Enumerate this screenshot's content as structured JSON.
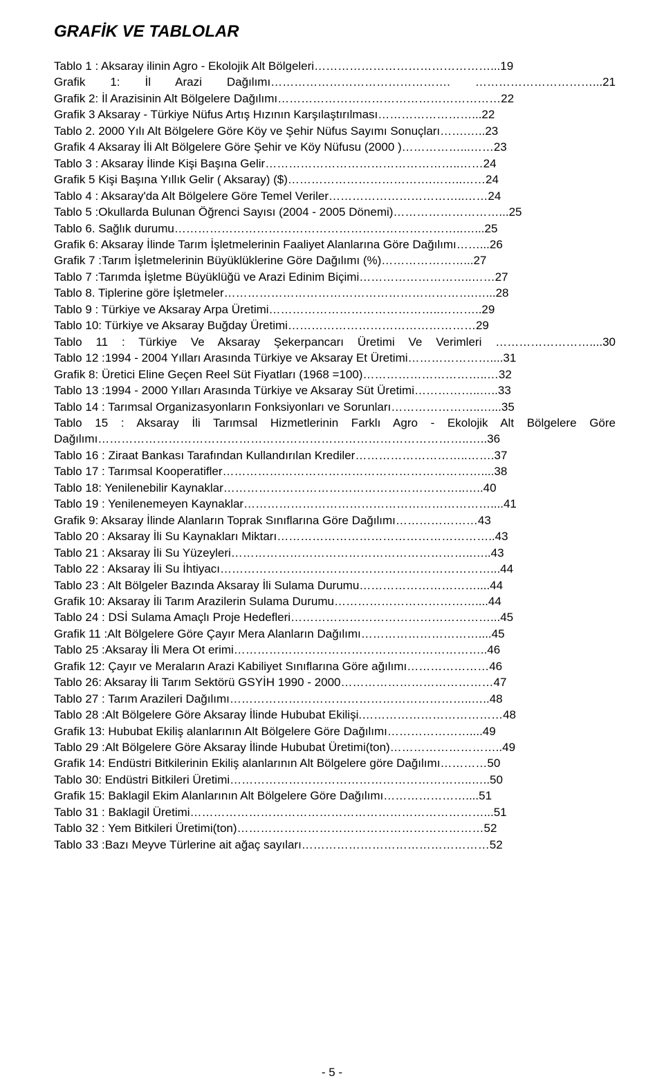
{
  "title": "GRAFİK VE TABLOLAR",
  "entries": [
    {
      "text": "Tablo 1 : Aksaray ilinin Agro - Ekolojik Alt Bölgeleri………………………………………...19",
      "justified": false
    },
    {
      "text": "Grafik 1: İl Arazi Dağılımı………………………………………. …………………………...21",
      "justified": true
    },
    {
      "text": "Grafik 2: İl Arazisinin  Alt  Bölgelere Dağılımı…………………………………………………22",
      "justified": false
    },
    {
      "text": "Grafik 3 Aksaray - Türkiye Nüfus Artış Hızının Karşılaştırılması……………………...22",
      "justified": false
    },
    {
      "text": "Tablo 2.  2000 Yılı Alt Bölgelere Göre Köy ve Şehir  Nüfus Sayımı Sonuçları…….…..23",
      "justified": false
    },
    {
      "text": "Grafik 4 Aksaray İli Alt Bölgelere Göre Şehir ve Köy Nüfusu (2000 )……………...……23",
      "justified": false
    },
    {
      "text": "Tablo 3 : Aksaray İlinde Kişi Başına Gelir…………………………………………..……24",
      "justified": false
    },
    {
      "text": " Grafik 5 Kişi Başına Yıllık Gelir ( Aksaray) ($)……………………………….……..……24",
      "justified": false
    },
    {
      "text": "Tablo 4 : Aksaray'da Alt Bölgelere Göre Temel Veriler……………………………..……24",
      "justified": false
    },
    {
      "text": "Tablo 5 :Okullarda Bulunan Öğrenci Sayısı  (2004 - 2005 Dönemi)………………………...25",
      "justified": false
    },
    {
      "text": "Tablo 6. Sağlık durumu………………………………………………………………..…...25",
      "justified": false
    },
    {
      "text": "Grafik 6: Aksaray İlinde Tarım İşletmelerinin Faaliyet Alanlarına  Göre Dağılımı……...26",
      "justified": false
    },
    {
      "text": "Grafik 7 :Tarım İşletmelerinin Büyüklüklerine Göre Dağılımı (%)…………………...27",
      "justified": false
    },
    {
      "text": "Tablo 7 :Tarımda İşletme Büyüklüğü ve Arazi Edinim Biçimi………………………..……27",
      "justified": false
    },
    {
      "text": "Tablo 8.  Tiplerine göre İşletmeler……………………………………………………….…...28",
      "justified": false
    },
    {
      "text": "Tablo 9 :  Türkiye ve Aksaray Arpa Üretimi……………………………………..………..29",
      "justified": false
    },
    {
      "text": "Tablo 10: Türkiye  ve Aksaray Buğday Üretimi…………………………………………29",
      "justified": false
    },
    {
      "text": "Tablo 11 : Türkiye Ve Aksaray Şekerpancarı Üretimi Ve Verimleri ……………………....30",
      "justified": true
    },
    {
      "text": "Tablo 12 :1994 - 2004 Yılları Arasında Türkiye ve Aksaray Et Üretimi…………………....31",
      "justified": false
    },
    {
      "text": "Grafik 8: Üretici Eline Geçen Reel Süt Fiyatları (1968 =100)…………………………..…32",
      "justified": false
    },
    {
      "text": "Tablo 13 :1994 - 2000 Yılları Arasında Türkiye ve Aksaray Süt Üretimi……………..…..33",
      "justified": false
    },
    {
      "text": "Tablo 14 : Tarımsal Organizasyonların Fonksiyonları ve Sorunları…………………..…...35",
      "justified": false
    },
    {
      "text": "Tablo 15 : Aksaray İli Tarımsal Hizmetlerinin Farklı Agro - Ekolojik Alt Bölgelere Göre Dağılımı…………………………………………………………………………………..…..36",
      "justified": true
    },
    {
      "text": "Tablo 16 : Ziraat Bankası Tarafından Kullandırılan Krediler………………………..…….37",
      "justified": false
    },
    {
      "text": "Tablo 17 : Tarımsal Kooperatifler…………………………………………………………....38",
      "justified": false
    },
    {
      "text": "Tablo 18: Yenilenebilir Kaynaklar……………………………………………………..…..40",
      "justified": false
    },
    {
      "text": "Tablo 19 : Yenilenemeyen Kaynaklar………………………………………………………....41",
      "justified": false
    },
    {
      "text": "Grafik 9: Aksaray İlinde Alanların  Toprak Sınıflarına Göre Dağılımı…………………43",
      "justified": false
    },
    {
      "text": "Tablo 20 : Aksaray İli Su Kaynakları Miktarı………………………………………………..43",
      "justified": false
    },
    {
      "text": "Tablo 21 : Aksaray İli Su Yüzeyleri……………………………………………………..…..43",
      "justified": false
    },
    {
      "text": "Tablo 22 : Aksaray İli Su İhtiyacı……………………………………………………………...44",
      "justified": false
    },
    {
      "text": "Tablo 23 : Alt Bölgeler Bazında Aksaray İli Sulama Durumu…………………………....44",
      "justified": false
    },
    {
      "text": "Grafik 10: Aksaray İli Tarım Arazilerin Sulama Durumu………………………………....44",
      "justified": false
    },
    {
      "text": "Tablo 24 : DSİ Sulama Amaçlı Proje Hedefleri……………………………………………...45",
      "justified": false
    },
    {
      "text": "Grafik 11 :Alt Bölgelere Göre Çayır Mera Alanların Dağılımı…………………………....45",
      "justified": false
    },
    {
      "text": "Tablo 25 :Aksaray İli Mera Ot erimi………………………………………………………..46",
      "justified": false
    },
    {
      "text": "Grafik 12: Çayır ve Meraların Arazi Kabiliyet Sınıflarına Göre  ağılımı…………………46",
      "justified": false
    },
    {
      "text": "Tablo 26:  Aksaray İli Tarım Sektörü GSYİH 1990 - 2000…………………………………47",
      "justified": false
    },
    {
      "text": "Tablo 27 : Tarım Arazileri  Dağılımı……………………………………………………..…..48",
      "justified": false
    },
    {
      "text": "Tablo 28 :Alt Bölgelere Göre Aksaray İlinde Hububat Ekilişi.………………………………48",
      "justified": false
    },
    {
      "text": "Grafik 13: Hububat  Ekiliş alanlarının Alt Bölgelere Göre  Dağılımı…………………....49",
      "justified": false
    },
    {
      "text": "Tablo 29 :Alt Bölgelere Göre Aksaray İlinde Hububat Üretimi(ton)………………………..49",
      "justified": false
    },
    {
      "text": "Grafik 14: Endüstri Bitkilerinin Ekiliş alanlarının Alt Bölgelere göre Dağılımı…………50",
      "justified": false
    },
    {
      "text": "Tablo 30: Endüstri Bitkileri Üretimi……………………………………………………..…..50",
      "justified": false
    },
    {
      "text": "Grafik 15:  Baklagil Ekim Alanlarının Alt Bölgelere Göre Dağılımı…………………....51",
      "justified": false
    },
    {
      "text": "Tablo 31 : Baklagil Üretimi…………………………………………………………………...51",
      "justified": false
    },
    {
      "text": "Tablo 32 : Yem Bitkileri Üretimi(ton)………………………………………………………52",
      "justified": false
    },
    {
      "text": "Tablo 33 :Bazı Meyve Türlerine ait ağaç sayıları…………………………………………52",
      "justified": false
    }
  ],
  "footer": "- 5 -"
}
